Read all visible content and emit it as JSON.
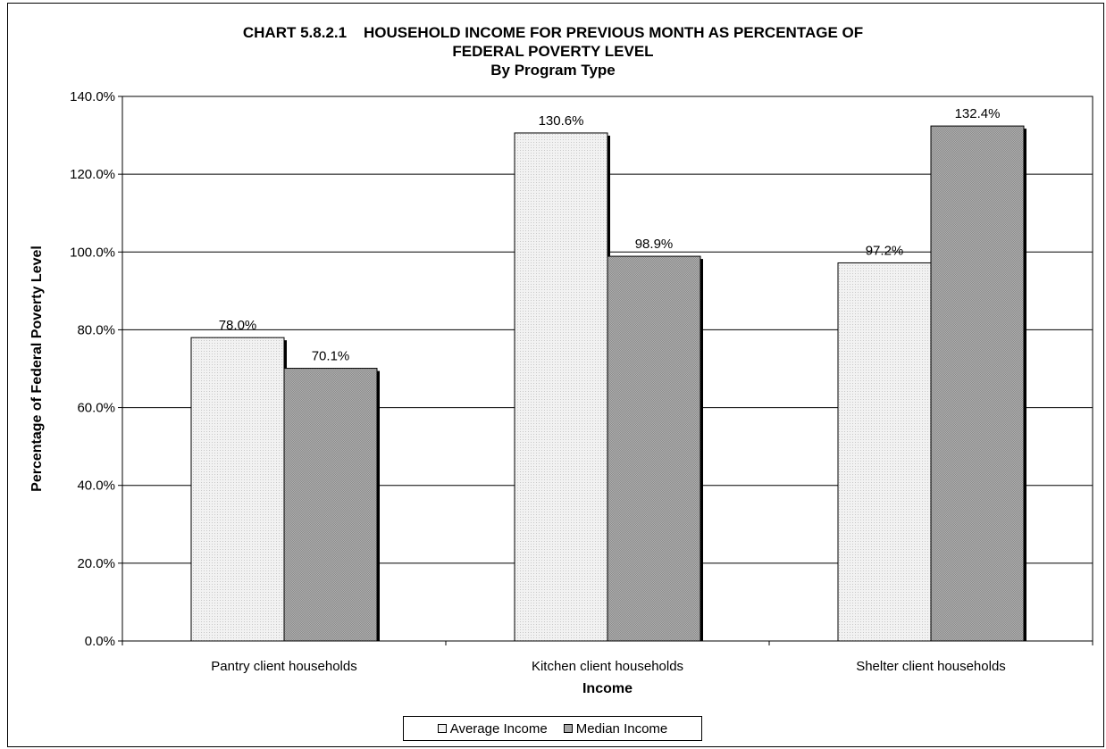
{
  "chart_data": {
    "type": "bar",
    "title": "CHART 5.8.2.1    HOUSEHOLD INCOME FOR PREVIOUS MONTH AS PERCENTAGE OF\nFEDERAL POVERTY LEVEL\nBy Program Type",
    "title_lines": [
      "CHART 5.8.2.1    HOUSEHOLD INCOME FOR PREVIOUS MONTH AS PERCENTAGE OF",
      "FEDERAL POVERTY LEVEL",
      "By Program Type"
    ],
    "xlabel": "Income",
    "ylabel": "Percentage of Federal Poverty Level",
    "categories": [
      "Pantry client households",
      "Kitchen client households",
      "Shelter client households"
    ],
    "series": [
      {
        "name": "Average Income",
        "values": [
          78.0,
          130.6,
          97.2
        ],
        "labels": [
          "78.0%",
          "130.6%",
          "97.2%"
        ],
        "color": "#ebebeb"
      },
      {
        "name": "Median Income",
        "values": [
          70.1,
          98.9,
          132.4
        ],
        "labels": [
          "70.1%",
          "98.9%",
          "132.4%"
        ],
        "color": "#9d9d9d"
      }
    ],
    "ylim": [
      0,
      140
    ],
    "yticks": [
      0,
      20,
      40,
      60,
      80,
      100,
      120,
      140
    ],
    "ytick_labels": [
      "0.0%",
      "20.0%",
      "40.0%",
      "60.0%",
      "80.0%",
      "100.0%",
      "120.0%",
      "140.0%"
    ],
    "grid": true,
    "legend_position": "bottom"
  }
}
